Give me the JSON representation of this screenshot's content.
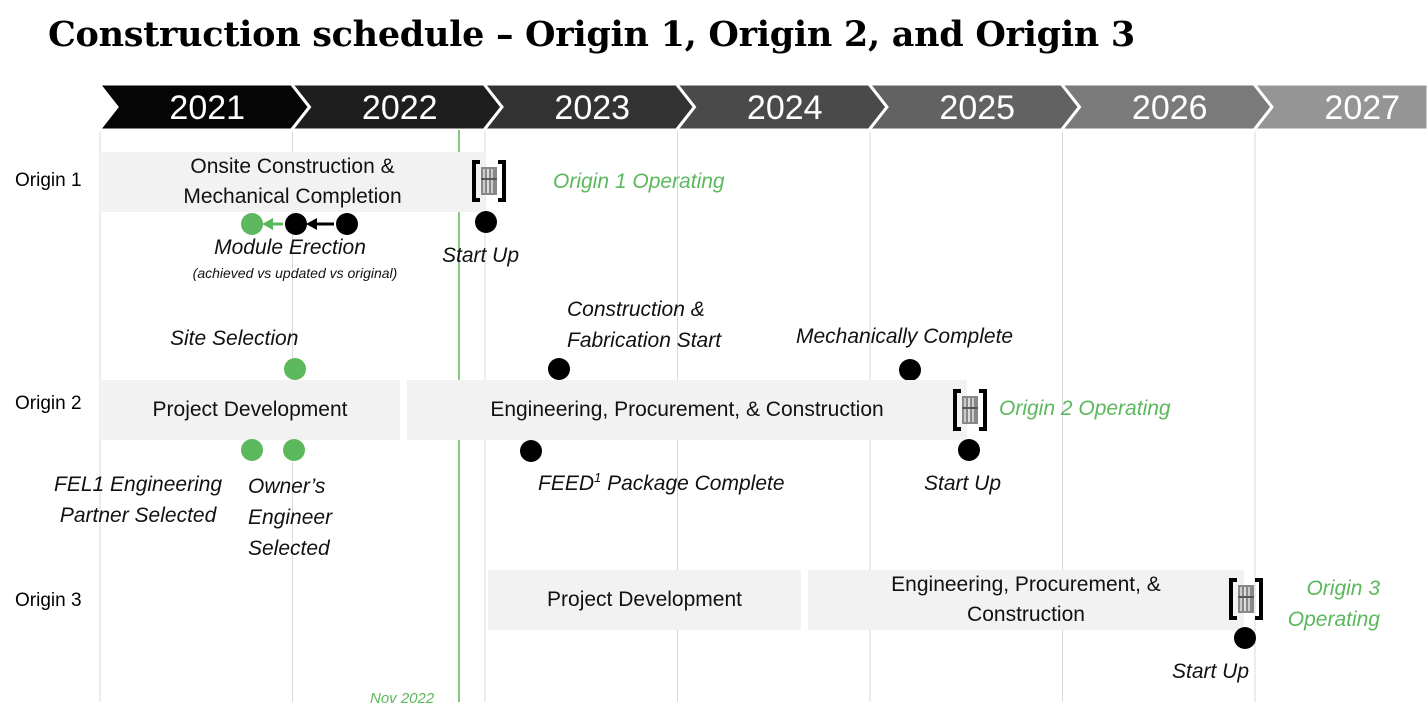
{
  "title": "Construction schedule – Origin 1, Origin 2, and Origin 3",
  "years": [
    "2021",
    "2022",
    "2023",
    "2024",
    "2025",
    "2026",
    "2027"
  ],
  "colors": {
    "chevrons": [
      "#050505",
      "#1e1e1e",
      "#333333",
      "#4a4a4a",
      "#626262",
      "#7a7a7a",
      "#959595"
    ],
    "milestone": "#000000",
    "achieved": "#5cb85c",
    "bar_fill": "#f2f2f2",
    "current_line": "#5cb85c"
  },
  "current_marker": {
    "label": "Nov 2022"
  },
  "rows": {
    "origin1": {
      "label": "Origin 1",
      "bar": {
        "line1": "Onsite Construction &",
        "line2": "Mechanical Completion"
      },
      "operating": "Origin 1 Operating",
      "module_erection": "Module Erection",
      "module_erection_note": "(achieved vs updated vs original)",
      "startup": "Start Up",
      "facility_icon": "plant-icon"
    },
    "origin2": {
      "label": "Origin 2",
      "bar1": "Project Development",
      "bar2": "Engineering, Procurement, & Construction",
      "operating": "Origin 2 Operating",
      "site_selection": "Site Selection",
      "construction_start": {
        "line1": "Construction &",
        "line2": "Fabrication Start"
      },
      "mech_complete": "Mechanically Complete",
      "fel1": {
        "line1": "FEL1 Engineering",
        "line2": "Partner Selected"
      },
      "owners": {
        "line1": "Owner’s",
        "line2": "Engineer",
        "line3": "Selected"
      },
      "feed": {
        "prefix": "FEED",
        "sup": "1",
        "suffix": " Package Complete"
      },
      "startup": "Start Up",
      "facility_icon": "plant-icon"
    },
    "origin3": {
      "label": "Origin 3",
      "bar1": "Project Development",
      "bar2": {
        "line1": "Engineering, Procurement, &",
        "line2": "Construction"
      },
      "operating": {
        "line1": "Origin 3",
        "line2": "Operating"
      },
      "startup": "Start Up",
      "facility_icon": "plant-icon"
    }
  }
}
